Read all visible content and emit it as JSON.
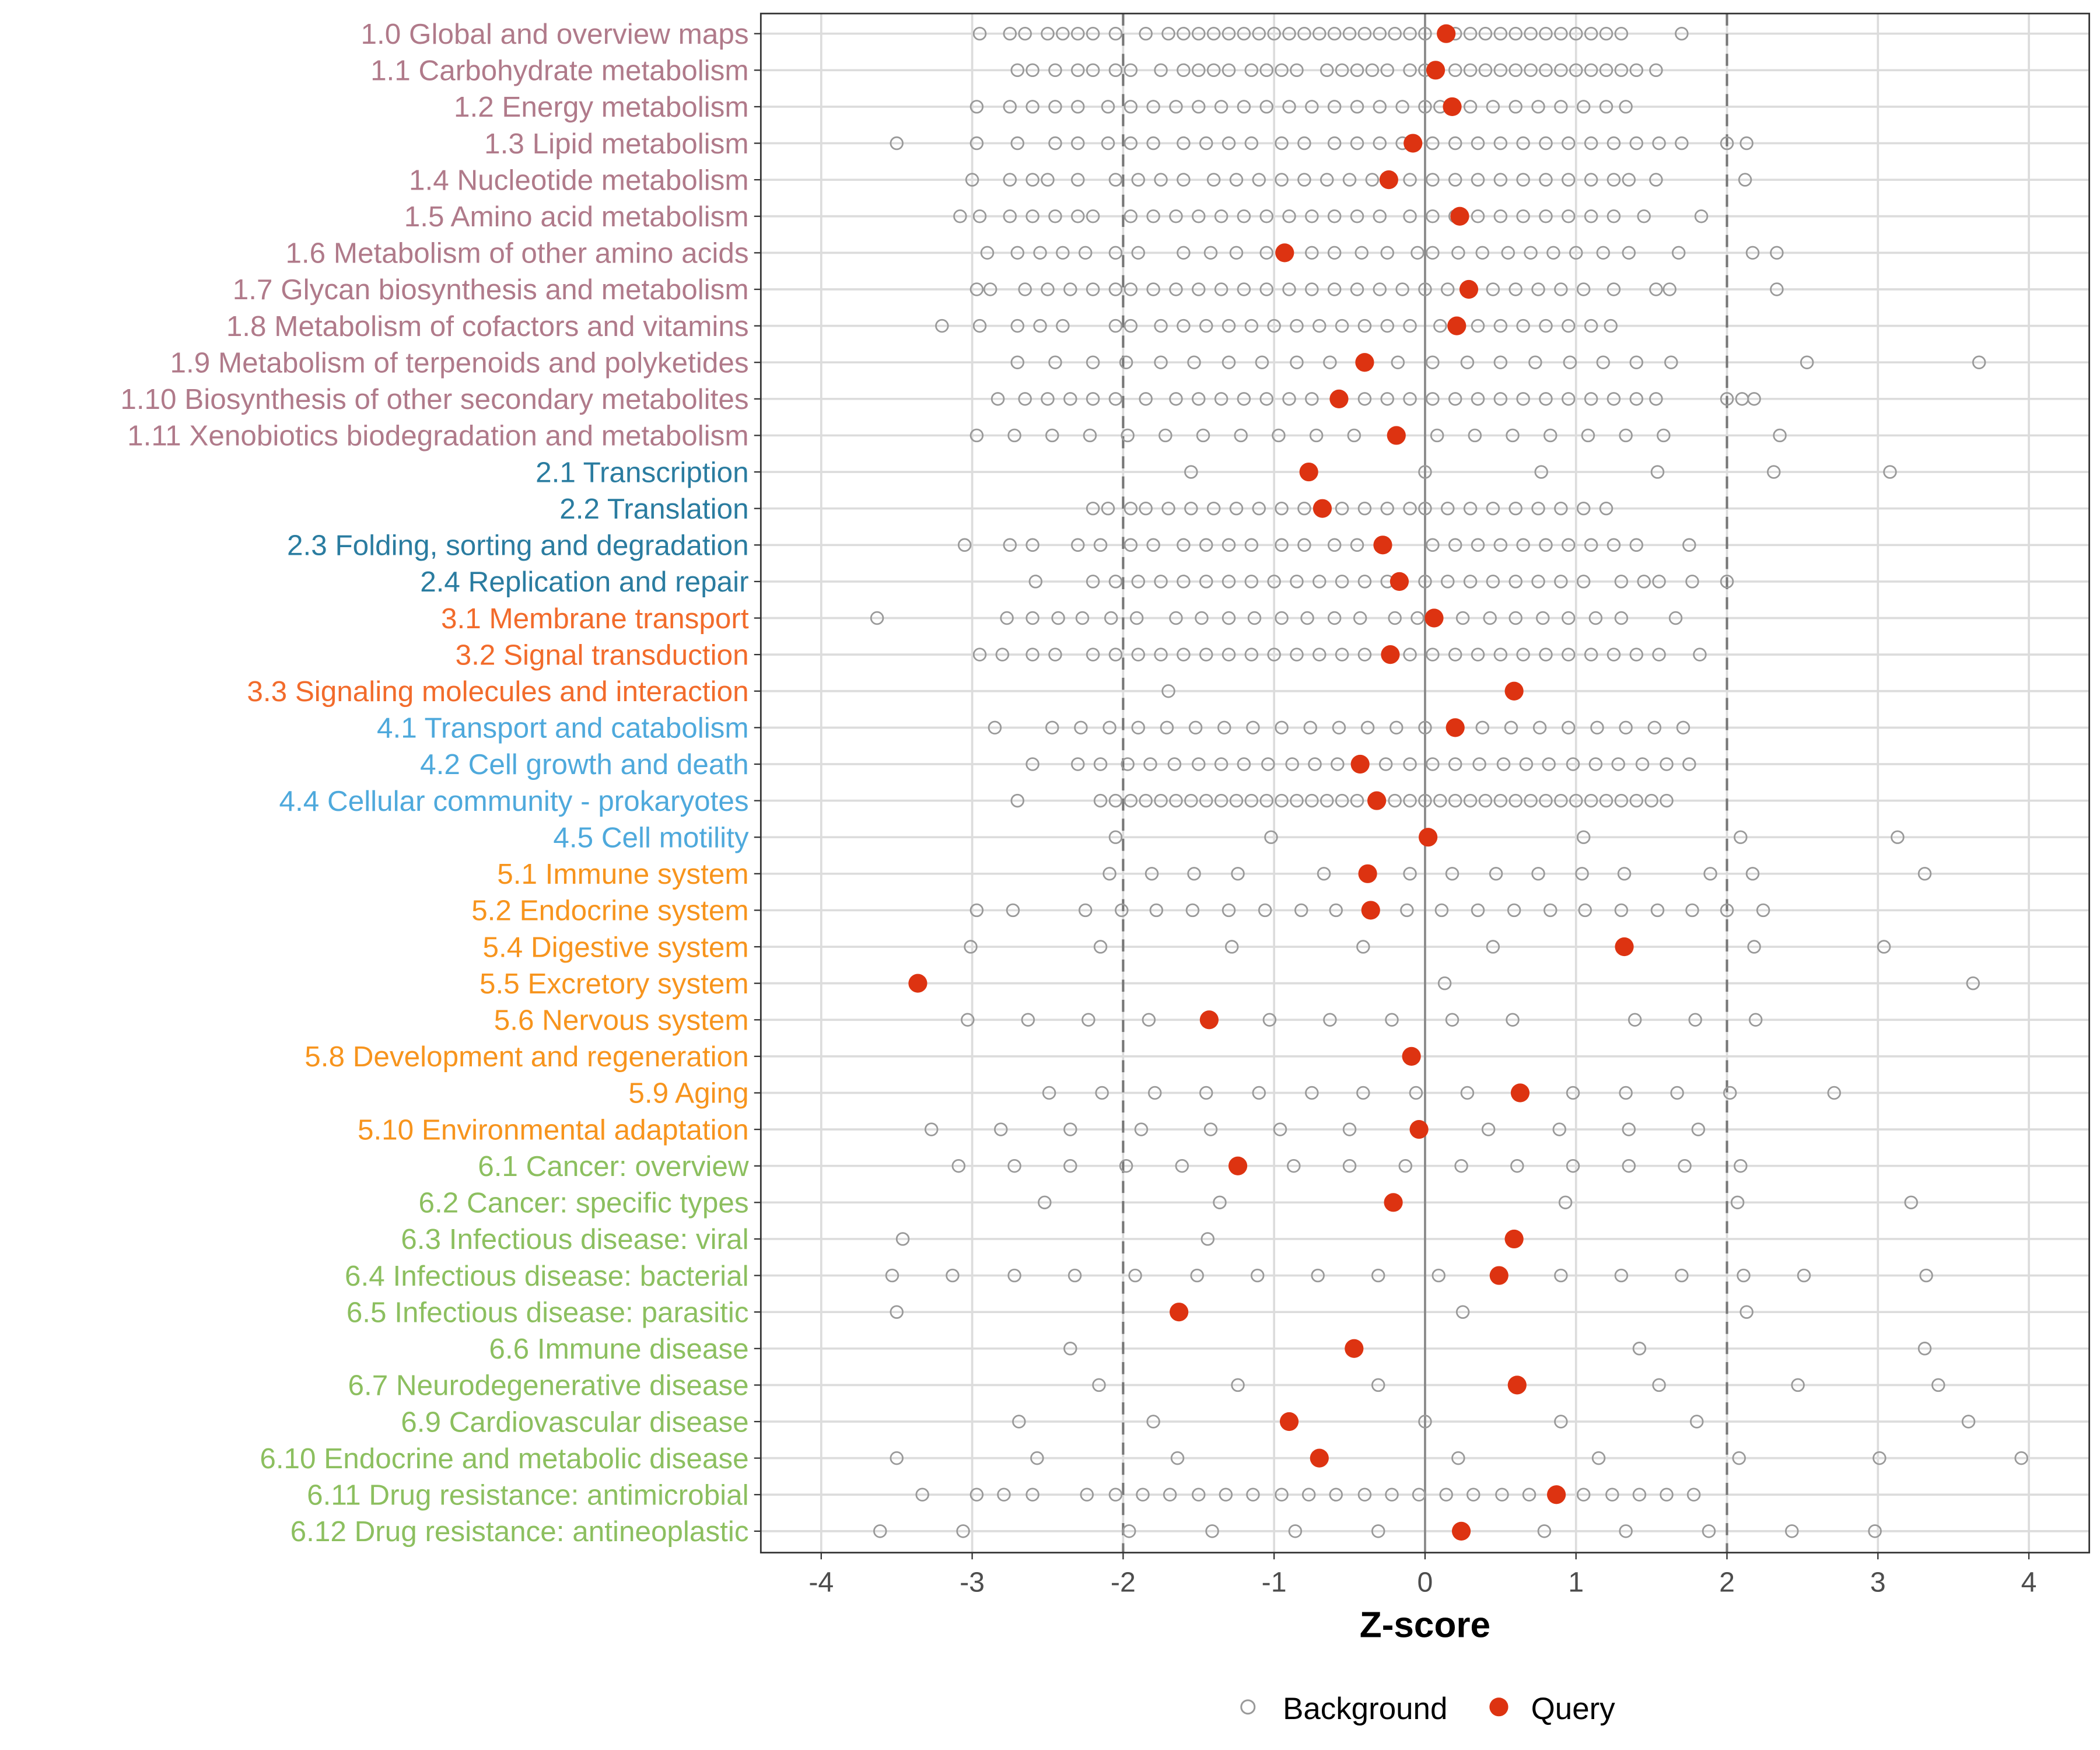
{
  "chart_data": {
    "type": "scatter",
    "title": "",
    "xlabel": "Z-score",
    "ylabel": "",
    "xlim": [
      -4.4,
      4.4
    ],
    "xticks": [
      -4,
      -3,
      -2,
      -1,
      0,
      1,
      2,
      3,
      4
    ],
    "xtick_labels": [
      "-4",
      "-3",
      "-2",
      "-1",
      "0",
      "1",
      "2",
      "3",
      "4"
    ],
    "reference_lines": {
      "dashed": [
        -2,
        2
      ],
      "solid": [
        0
      ]
    },
    "grid": true,
    "legend": {
      "position": "bottom",
      "entries": [
        {
          "name": "Background",
          "marker": "open-circle",
          "color": "#999999"
        },
        {
          "name": "Query",
          "marker": "filled-circle",
          "color": "#dd3311"
        }
      ]
    },
    "group_colors": {
      "1": "#b07a8a",
      "2": "#2a7ca0",
      "3": "#f26b2b",
      "4": "#4ea9dc",
      "5": "#f7941d",
      "6": "#8cbf5f"
    },
    "categories": [
      {
        "label": "1.0 Global and overview maps",
        "group": "1",
        "query": 0.14,
        "background": [
          -2.95,
          -2.75,
          -2.65,
          -2.5,
          -2.4,
          -2.3,
          -2.2,
          -2.05,
          -1.85,
          -1.7,
          -1.6,
          -1.5,
          -1.4,
          -1.3,
          -1.2,
          -1.1,
          -1.0,
          -0.9,
          -0.8,
          -0.7,
          -0.6,
          -0.5,
          -0.4,
          -0.3,
          -0.2,
          -0.1,
          0.0,
          0.2,
          0.3,
          0.4,
          0.5,
          0.6,
          0.7,
          0.8,
          0.9,
          1.0,
          1.1,
          1.2,
          1.3,
          1.7
        ]
      },
      {
        "label": "1.1 Carbohydrate metabolism",
        "group": "1",
        "query": 0.07,
        "background": [
          -2.7,
          -2.6,
          -2.45,
          -2.3,
          -2.2,
          -2.05,
          -1.95,
          -1.75,
          -1.6,
          -1.5,
          -1.4,
          -1.3,
          -1.15,
          -1.05,
          -0.95,
          -0.85,
          -0.65,
          -0.55,
          -0.45,
          -0.35,
          -0.25,
          -0.1,
          0.0,
          0.2,
          0.3,
          0.4,
          0.5,
          0.6,
          0.7,
          0.8,
          0.9,
          1.0,
          1.1,
          1.2,
          1.3,
          1.4,
          1.53
        ]
      },
      {
        "label": "1.2 Energy metabolism",
        "group": "1",
        "query": 0.18,
        "background": [
          -2.97,
          -2.75,
          -2.6,
          -2.45,
          -2.3,
          -2.1,
          -1.95,
          -1.8,
          -1.65,
          -1.5,
          -1.35,
          -1.2,
          -1.05,
          -0.9,
          -0.75,
          -0.6,
          -0.45,
          -0.3,
          -0.15,
          0.0,
          0.1,
          0.3,
          0.45,
          0.6,
          0.75,
          0.9,
          1.05,
          1.2,
          1.33
        ]
      },
      {
        "label": "1.3 Lipid metabolism",
        "group": "1",
        "query": -0.08,
        "background": [
          -3.5,
          -2.97,
          -2.7,
          -2.45,
          -2.3,
          -2.1,
          -1.95,
          -1.8,
          -1.6,
          -1.45,
          -1.3,
          -1.15,
          -0.95,
          -0.8,
          -0.6,
          -0.45,
          -0.3,
          -0.15,
          0.05,
          0.2,
          0.35,
          0.5,
          0.65,
          0.8,
          0.95,
          1.1,
          1.25,
          1.4,
          1.55,
          1.7,
          2.0,
          2.13
        ]
      },
      {
        "label": "1.4 Nucleotide metabolism",
        "group": "1",
        "query": -0.24,
        "background": [
          -3.0,
          -2.75,
          -2.6,
          -2.5,
          -2.3,
          -2.05,
          -1.9,
          -1.75,
          -1.6,
          -1.4,
          -1.25,
          -1.1,
          -0.95,
          -0.8,
          -0.65,
          -0.5,
          -0.35,
          -0.1,
          0.05,
          0.2,
          0.35,
          0.5,
          0.65,
          0.8,
          0.95,
          1.1,
          1.25,
          1.35,
          1.53,
          2.12
        ]
      },
      {
        "label": "1.5 Amino acid metabolism",
        "group": "1",
        "query": 0.23,
        "background": [
          -3.08,
          -2.95,
          -2.75,
          -2.6,
          -2.45,
          -2.3,
          -2.2,
          -1.95,
          -1.8,
          -1.65,
          -1.5,
          -1.35,
          -1.2,
          -1.05,
          -0.9,
          -0.75,
          -0.6,
          -0.45,
          -0.3,
          -0.1,
          0.05,
          0.2,
          0.35,
          0.5,
          0.65,
          0.8,
          0.95,
          1.1,
          1.25,
          1.45,
          1.83
        ]
      },
      {
        "label": "1.6 Metabolism of other amino acids",
        "group": "1",
        "query": -0.93,
        "background": [
          -2.9,
          -2.7,
          -2.55,
          -2.4,
          -2.25,
          -2.05,
          -1.9,
          -1.6,
          -1.42,
          -1.25,
          -1.05,
          -0.75,
          -0.6,
          -0.42,
          -0.25,
          -0.05,
          0.05,
          0.22,
          0.38,
          0.55,
          0.7,
          0.85,
          1.0,
          1.18,
          1.35,
          1.68,
          2.17,
          2.33
        ]
      },
      {
        "label": "1.7 Glycan biosynthesis and metabolism",
        "group": "1",
        "query": 0.29,
        "background": [
          -2.97,
          -2.88,
          -2.65,
          -2.5,
          -2.35,
          -2.2,
          -2.05,
          -1.95,
          -1.8,
          -1.65,
          -1.5,
          -1.35,
          -1.2,
          -1.05,
          -0.9,
          -0.75,
          -0.6,
          -0.45,
          -0.3,
          -0.15,
          0.0,
          0.15,
          0.45,
          0.6,
          0.75,
          0.9,
          1.05,
          1.25,
          1.53,
          1.62,
          2.33
        ]
      },
      {
        "label": "1.8 Metabolism of cofactors and vitamins",
        "group": "1",
        "query": 0.21,
        "background": [
          -3.2,
          -2.95,
          -2.7,
          -2.55,
          -2.4,
          -2.05,
          -1.95,
          -1.75,
          -1.6,
          -1.45,
          -1.3,
          -1.15,
          -1.0,
          -0.85,
          -0.7,
          -0.55,
          -0.4,
          -0.25,
          -0.1,
          0.1,
          0.35,
          0.5,
          0.65,
          0.8,
          0.95,
          1.1,
          1.23
        ]
      },
      {
        "label": "1.9 Metabolism of terpenoids and polyketides",
        "group": "1",
        "query": -0.4,
        "background": [
          -2.7,
          -2.45,
          -2.2,
          -1.98,
          -1.75,
          -1.53,
          -1.3,
          -1.08,
          -0.85,
          -0.63,
          -0.18,
          0.05,
          0.28,
          0.5,
          0.73,
          0.96,
          1.18,
          1.4,
          1.63,
          2.53,
          3.67
        ]
      },
      {
        "label": "1.10 Biosynthesis of other secondary metabolites",
        "group": "1",
        "query": -0.57,
        "background": [
          -2.83,
          -2.65,
          -2.5,
          -2.35,
          -2.2,
          -2.05,
          -1.85,
          -1.65,
          -1.5,
          -1.35,
          -1.2,
          -1.05,
          -0.9,
          -0.75,
          -0.4,
          -0.25,
          -0.1,
          0.05,
          0.2,
          0.35,
          0.5,
          0.65,
          0.8,
          0.95,
          1.1,
          1.25,
          1.4,
          1.53,
          2.0,
          2.1,
          2.18
        ]
      },
      {
        "label": "1.11 Xenobiotics biodegradation and metabolism",
        "group": "1",
        "query": -0.19,
        "background": [
          -2.97,
          -2.72,
          -2.47,
          -2.22,
          -1.97,
          -1.72,
          -1.47,
          -1.22,
          -0.97,
          -0.72,
          -0.47,
          0.08,
          0.33,
          0.58,
          0.83,
          1.08,
          1.33,
          1.58,
          2.35
        ]
      },
      {
        "label": "2.1 Transcription",
        "group": "2",
        "query": -0.77,
        "background": [
          -1.55,
          0.0,
          0.77,
          1.54,
          2.31,
          3.08
        ]
      },
      {
        "label": "2.2 Translation",
        "group": "2",
        "query": -0.68,
        "background": [
          -2.2,
          -2.1,
          -1.95,
          -1.85,
          -1.7,
          -1.55,
          -1.4,
          -1.25,
          -1.1,
          -0.95,
          -0.8,
          -0.55,
          -0.4,
          -0.25,
          -0.1,
          0.0,
          0.15,
          0.3,
          0.45,
          0.6,
          0.75,
          0.9,
          1.05,
          1.2
        ]
      },
      {
        "label": "2.3 Folding, sorting and degradation",
        "group": "2",
        "query": -0.28,
        "background": [
          -3.05,
          -2.75,
          -2.6,
          -2.3,
          -2.15,
          -1.95,
          -1.8,
          -1.6,
          -1.45,
          -1.3,
          -1.15,
          -0.95,
          -0.8,
          -0.6,
          -0.45,
          0.05,
          0.2,
          0.35,
          0.5,
          0.65,
          0.8,
          0.95,
          1.1,
          1.25,
          1.4,
          1.75
        ]
      },
      {
        "label": "2.4 Replication and repair",
        "group": "2",
        "query": -0.17,
        "background": [
          -2.58,
          -2.2,
          -2.05,
          -1.9,
          -1.75,
          -1.6,
          -1.45,
          -1.3,
          -1.15,
          -1.0,
          -0.85,
          -0.7,
          -0.55,
          -0.4,
          -0.25,
          0.0,
          0.15,
          0.3,
          0.45,
          0.6,
          0.75,
          0.9,
          1.05,
          1.3,
          1.45,
          1.55,
          1.77,
          2.0
        ]
      },
      {
        "label": "3.1 Membrane transport",
        "group": "3",
        "query": 0.06,
        "background": [
          -3.63,
          -2.77,
          -2.6,
          -2.43,
          -2.27,
          -2.08,
          -1.91,
          -1.65,
          -1.48,
          -1.3,
          -1.13,
          -0.95,
          -0.78,
          -0.6,
          -0.43,
          -0.2,
          -0.05,
          0.25,
          0.43,
          0.6,
          0.78,
          0.95,
          1.13,
          1.3,
          1.66
        ]
      },
      {
        "label": "3.2 Signal transduction",
        "group": "3",
        "query": -0.23,
        "background": [
          -2.95,
          -2.8,
          -2.6,
          -2.45,
          -2.2,
          -2.05,
          -1.9,
          -1.75,
          -1.6,
          -1.45,
          -1.3,
          -1.15,
          -1.0,
          -0.85,
          -0.7,
          -0.55,
          -0.4,
          -0.1,
          0.05,
          0.2,
          0.35,
          0.5,
          0.65,
          0.8,
          0.95,
          1.1,
          1.25,
          1.4,
          1.55,
          1.82
        ]
      },
      {
        "label": "3.3 Signaling molecules and interaction",
        "group": "3",
        "query": 0.59,
        "background": [
          -1.7
        ]
      },
      {
        "label": "4.1 Transport and catabolism",
        "group": "4",
        "query": 0.2,
        "background": [
          -2.85,
          -2.47,
          -2.28,
          -2.09,
          -1.9,
          -1.71,
          -1.52,
          -1.33,
          -1.14,
          -0.95,
          -0.76,
          -0.57,
          -0.38,
          -0.19,
          0.0,
          0.38,
          0.57,
          0.76,
          0.95,
          1.14,
          1.33,
          1.52,
          1.71
        ]
      },
      {
        "label": "4.2 Cell growth and death",
        "group": "4",
        "query": -0.43,
        "background": [
          -2.6,
          -2.3,
          -2.15,
          -1.97,
          -1.82,
          -1.66,
          -1.5,
          -1.35,
          -1.2,
          -1.04,
          -0.88,
          -0.73,
          -0.58,
          -0.26,
          -0.1,
          0.05,
          0.2,
          0.36,
          0.52,
          0.67,
          0.82,
          0.98,
          1.13,
          1.28,
          1.44,
          1.6,
          1.75
        ]
      },
      {
        "label": "4.4 Cellular community - prokaryotes",
        "group": "4",
        "query": -0.32,
        "background": [
          -2.7,
          -2.15,
          -2.05,
          -1.95,
          -1.85,
          -1.75,
          -1.65,
          -1.55,
          -1.45,
          -1.35,
          -1.25,
          -1.15,
          -1.05,
          -0.95,
          -0.85,
          -0.75,
          -0.65,
          -0.55,
          -0.45,
          -0.2,
          -0.1,
          0.0,
          0.1,
          0.2,
          0.3,
          0.4,
          0.5,
          0.6,
          0.7,
          0.8,
          0.9,
          1.0,
          1.1,
          1.2,
          1.3,
          1.4,
          1.5,
          1.6
        ]
      },
      {
        "label": "4.5 Cell motility",
        "group": "4",
        "query": 0.02,
        "background": [
          -2.05,
          -1.02,
          1.05,
          2.09,
          3.13
        ]
      },
      {
        "label": "5.1 Immune system",
        "group": "5",
        "query": -0.38,
        "background": [
          -2.09,
          -1.81,
          -1.53,
          -1.24,
          -0.67,
          -0.1,
          0.18,
          0.47,
          0.75,
          1.04,
          1.32,
          1.89,
          2.17,
          3.31
        ]
      },
      {
        "label": "5.2 Endocrine system",
        "group": "5",
        "query": -0.36,
        "background": [
          -2.97,
          -2.73,
          -2.25,
          -2.01,
          -1.78,
          -1.54,
          -1.3,
          -1.06,
          -0.82,
          -0.59,
          -0.12,
          0.11,
          0.35,
          0.59,
          0.83,
          1.06,
          1.3,
          1.54,
          1.77,
          2.0,
          2.24
        ]
      },
      {
        "label": "5.4 Digestive system",
        "group": "5",
        "query": 1.32,
        "background": [
          -3.01,
          -2.15,
          -1.28,
          -0.41,
          0.45,
          2.18,
          3.04
        ]
      },
      {
        "label": "5.5 Excretory system",
        "group": "5",
        "query": -3.36,
        "background": [
          0.13,
          3.63
        ]
      },
      {
        "label": "5.6 Nervous system",
        "group": "5",
        "query": -1.43,
        "background": [
          -3.03,
          -2.63,
          -2.23,
          -1.83,
          -1.03,
          -0.63,
          -0.22,
          0.18,
          0.58,
          1.39,
          1.79,
          2.19
        ]
      },
      {
        "label": "5.8 Development and regeneration",
        "group": "5",
        "query": -0.09,
        "background": []
      },
      {
        "label": "5.9 Aging",
        "group": "5",
        "query": 0.63,
        "background": [
          -2.49,
          -2.14,
          -1.79,
          -1.45,
          -1.1,
          -0.75,
          -0.41,
          -0.06,
          0.28,
          0.98,
          1.33,
          1.67,
          2.02,
          2.71
        ]
      },
      {
        "label": "5.10 Environmental adaptation",
        "group": "5",
        "query": -0.04,
        "background": [
          -3.27,
          -2.81,
          -2.35,
          -1.88,
          -1.42,
          -0.96,
          -0.5,
          0.42,
          0.89,
          1.35,
          1.81
        ]
      },
      {
        "label": "6.1 Cancer: overview",
        "group": "6",
        "query": -1.24,
        "background": [
          -3.09,
          -2.72,
          -2.35,
          -1.98,
          -1.61,
          -0.87,
          -0.5,
          -0.13,
          0.24,
          0.61,
          0.98,
          1.35,
          1.72,
          2.09
        ]
      },
      {
        "label": "6.2 Cancer: specific types",
        "group": "6",
        "query": -0.21,
        "background": [
          -2.52,
          -1.36,
          0.93,
          2.07,
          3.22
        ]
      },
      {
        "label": "6.3 Infectious disease: viral",
        "group": "6",
        "query": 0.59,
        "background": [
          -3.46,
          -1.44
        ]
      },
      {
        "label": "6.4 Infectious disease: bacterial",
        "group": "6",
        "query": 0.49,
        "background": [
          -3.53,
          -3.13,
          -2.72,
          -2.32,
          -1.92,
          -1.51,
          -1.11,
          -0.71,
          -0.31,
          0.09,
          0.9,
          1.3,
          1.7,
          2.11,
          2.51,
          3.32
        ]
      },
      {
        "label": "6.5 Infectious disease: parasitic",
        "group": "6",
        "query": -1.63,
        "background": [
          -3.5,
          0.25,
          2.13
        ]
      },
      {
        "label": "6.6 Immune disease",
        "group": "6",
        "query": -0.47,
        "background": [
          -2.35,
          1.42,
          3.31
        ]
      },
      {
        "label": "6.7 Neurodegenerative disease",
        "group": "6",
        "query": 0.61,
        "background": [
          -2.16,
          -1.24,
          -0.31,
          1.55,
          2.47,
          3.4
        ]
      },
      {
        "label": "6.9 Cardiovascular disease",
        "group": "6",
        "query": -0.9,
        "background": [
          -2.69,
          -1.8,
          0.0,
          0.9,
          1.8,
          3.6
        ]
      },
      {
        "label": "6.10 Endocrine and metabolic disease",
        "group": "6",
        "query": -0.7,
        "background": [
          -3.5,
          -2.57,
          -1.64,
          0.22,
          1.15,
          2.08,
          3.01,
          3.95
        ]
      },
      {
        "label": "6.11 Drug resistance: antimicrobial",
        "group": "6",
        "query": 0.87,
        "background": [
          -3.33,
          -2.97,
          -2.79,
          -2.6,
          -2.24,
          -2.05,
          -1.87,
          -1.69,
          -1.5,
          -1.32,
          -1.14,
          -0.95,
          -0.77,
          -0.59,
          -0.4,
          -0.22,
          -0.04,
          0.14,
          0.32,
          0.51,
          0.69,
          1.05,
          1.24,
          1.42,
          1.6,
          1.78
        ]
      },
      {
        "label": "6.12 Drug resistance: antineoplastic",
        "group": "6",
        "query": 0.24,
        "background": [
          -3.61,
          -3.06,
          -1.96,
          -1.41,
          -0.86,
          -0.31,
          0.79,
          1.33,
          1.88,
          2.43,
          2.98
        ]
      }
    ]
  }
}
